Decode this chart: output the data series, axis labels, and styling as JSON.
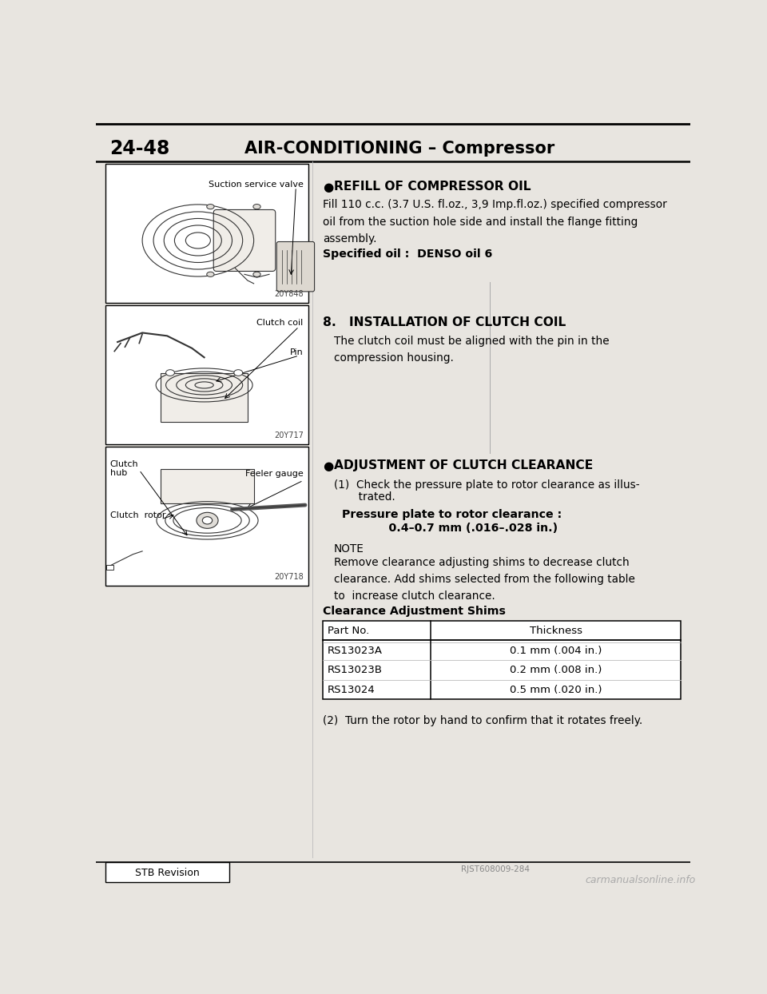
{
  "page_num": "24-48",
  "header_title": "AIR-CONDITIONING – Compressor",
  "bg_color": "#e8e5e0",
  "section_bullet1_title": "REFILL OF COMPRESSOR OIL",
  "section_bullet1_body": "Fill 110 c.c. (3.7 U.S. fl.oz., 3,9 Imp.fl.oz.) specified compressor\noil from the suction hole side and install the flange fitting\nassembly.",
  "section_bullet1_sub": "Specified oil :  DENSO oil 6",
  "section8_title": "8.   INSTALLATION OF CLUTCH COIL",
  "section8_body": "The clutch coil must be aligned with the pin in the\ncompression housing.",
  "section_bullet2_title": "ADJUSTMENT OF CLUTCH CLEARANCE",
  "section_bullet2_body1_a": "(1)  Check the pressure plate to rotor clearance as illus-",
  "section_bullet2_body1_b": "       trated.",
  "section_bullet2_sub1_a": "Pressure plate to rotor clearance :",
  "section_bullet2_sub1_b": "            0.4–0.7 mm (.016–.028 in.)",
  "section_bullet2_note_title": "NOTE",
  "section_bullet2_note_body": "Remove clearance adjusting shims to decrease clutch\nclearance. Add shims selected from the following table\nto  increase clutch clearance.",
  "table_title": "Clearance Adjustment Shims",
  "table_headers": [
    "Part No.",
    "Thickness"
  ],
  "table_rows": [
    [
      "RS13023A",
      "0.1 mm (.004 in.)"
    ],
    [
      "RS13023B",
      "0.2 mm (.008 in.)"
    ],
    [
      "RS13024",
      "0.5 mm (.020 in.)"
    ]
  ],
  "section_bullet2_body2": "(2)  Turn the rotor by hand to confirm that it rotates freely.",
  "img1_label": "Suction service valve",
  "img1_code": "20Y848",
  "img2_label1": "Clutch coil",
  "img2_label2": "Pin",
  "img2_code": "20Y717",
  "img3_label1": "Clutch\nhub",
  "img3_label2": "Feeler gauge",
  "img3_label3": "Clutch  rotor",
  "img3_code": "20Y718",
  "footer_left": "STB Revision",
  "footer_right": "RJST608009-284",
  "footer_watermark": "carmanualsonline.info"
}
